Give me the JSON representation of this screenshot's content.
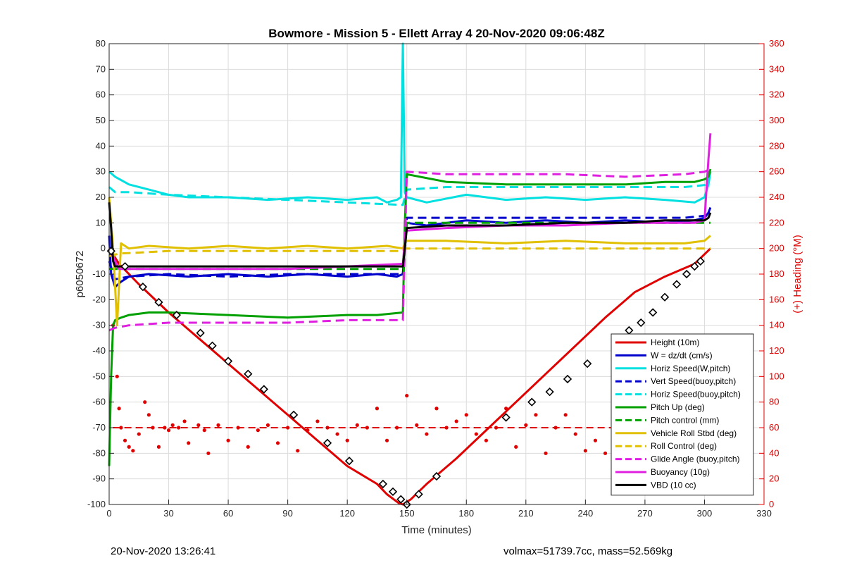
{
  "chart_data": {
    "type": "line",
    "title": "Bowmore - Mission 5 - Ellett Array 4 20-Nov-2020 09:06:48Z",
    "xlabel": "Time (minutes)",
    "ylabel": "p6050672",
    "y2label": "(+) Heading (°M)",
    "xlim": [
      0,
      330
    ],
    "ylim": [
      -100,
      80
    ],
    "y2lim": [
      0,
      360
    ],
    "xticks": [
      0,
      30,
      60,
      90,
      120,
      150,
      180,
      210,
      240,
      270,
      300,
      330
    ],
    "yticks": [
      -100,
      -90,
      -80,
      -70,
      -60,
      -50,
      -40,
      -30,
      -20,
      -10,
      0,
      10,
      20,
      30,
      40,
      50,
      60,
      70,
      80
    ],
    "y2ticks": [
      0,
      20,
      40,
      60,
      80,
      100,
      120,
      140,
      160,
      180,
      200,
      220,
      240,
      260,
      280,
      300,
      320,
      340,
      360
    ],
    "grid": true,
    "legend_position": "lower-right",
    "series": [
      {
        "name": "Height (10m)",
        "color": "#e00000",
        "style": "solid",
        "x": [
          0,
          5,
          15,
          30,
          45,
          60,
          75,
          90,
          105,
          120,
          135,
          140,
          146,
          148,
          152,
          160,
          175,
          190,
          205,
          220,
          235,
          250,
          265,
          280,
          295,
          303
        ],
        "y": [
          0,
          -6,
          -14,
          -25,
          -35,
          -45,
          -55,
          -65,
          -75,
          -85,
          -92,
          -96,
          -99.5,
          -100,
          -98,
          -92,
          -82,
          -71,
          -60,
          -49,
          -38,
          -27,
          -17,
          -11,
          -6,
          0
        ]
      },
      {
        "name": "W = dz/dt (cm/s)",
        "color": "#0000cc",
        "style": "solid",
        "x": [
          0,
          1,
          3,
          6,
          10,
          20,
          40,
          60,
          80,
          100,
          120,
          135,
          145,
          148,
          149,
          150,
          160,
          180,
          200,
          220,
          240,
          260,
          280,
          295,
          300,
          302,
          303
        ],
        "y": [
          5,
          -10,
          -15,
          -13,
          -11,
          -10,
          -11,
          -10,
          -11,
          -10,
          -11,
          -10,
          -11,
          -10,
          0,
          10,
          9,
          11,
          10,
          11,
          10,
          11,
          10,
          11,
          12,
          14,
          16
        ]
      },
      {
        "name": "Horiz Speed(W,pitch)",
        "color": "#00e0e0",
        "style": "solid",
        "x": [
          0,
          3,
          10,
          20,
          30,
          40,
          60,
          80,
          100,
          120,
          135,
          140,
          145,
          147,
          148,
          149,
          150,
          160,
          180,
          200,
          220,
          240,
          260,
          280,
          295,
          300,
          302,
          303
        ],
        "y": [
          30,
          28,
          25,
          23,
          21,
          20,
          20,
          19,
          20,
          19,
          20,
          18,
          19,
          20,
          80,
          22,
          20,
          18,
          21,
          19,
          20,
          19,
          20,
          19,
          18,
          20,
          25,
          30
        ]
      },
      {
        "name": "Vert Speed(buoy,pitch)",
        "color": "#0000cc",
        "style": "dashed",
        "x": [
          0,
          3,
          10,
          30,
          60,
          90,
          120,
          148,
          149,
          150,
          170,
          200,
          230,
          260,
          290,
          303
        ],
        "y": [
          -5,
          -12,
          -11,
          -10,
          -11,
          -10,
          -10,
          -10,
          0,
          12,
          12,
          12,
          12,
          12,
          12,
          13
        ]
      },
      {
        "name": "Horiz Speed(buoy,pitch)",
        "color": "#00e0e0",
        "style": "dashed",
        "x": [
          0,
          3,
          10,
          30,
          60,
          90,
          120,
          148,
          149,
          150,
          170,
          200,
          230,
          260,
          290,
          303
        ],
        "y": [
          24,
          22,
          22,
          21,
          20,
          19,
          18,
          17,
          20,
          23,
          24,
          24,
          24,
          24,
          24,
          25
        ]
      },
      {
        "name": "Pitch Up (deg)",
        "color": "#00a000",
        "style": "solid",
        "x": [
          0,
          1,
          2,
          3,
          6,
          10,
          20,
          30,
          60,
          90,
          120,
          135,
          148,
          149,
          150,
          170,
          200,
          230,
          260,
          280,
          295,
          300,
          302,
          303
        ],
        "y": [
          -85,
          -50,
          -30,
          -28,
          -27,
          -26,
          -25,
          -25,
          -26,
          -27,
          -26,
          -26,
          -25,
          10,
          29,
          26,
          25,
          25,
          25,
          26,
          26,
          27,
          28,
          31
        ]
      },
      {
        "name": "Pitch control (mm)",
        "color": "#00a000",
        "style": "dashed",
        "x": [
          0,
          5,
          30,
          60,
          90,
          120,
          148,
          149,
          150,
          180,
          210,
          240,
          270,
          300,
          303
        ],
        "y": [
          -8,
          -8,
          -8,
          -8,
          -8,
          -8,
          -8,
          0,
          10,
          10,
          10,
          10,
          10,
          10,
          10
        ]
      },
      {
        "name": "Vehicle Roll Stbd (deg)",
        "color": "#e0c000",
        "style": "solid",
        "x": [
          0,
          2,
          4,
          6,
          10,
          20,
          40,
          60,
          80,
          100,
          120,
          140,
          148,
          149,
          150,
          170,
          200,
          230,
          260,
          290,
          300,
          303
        ],
        "y": [
          20,
          0,
          -30,
          2,
          0,
          1,
          0,
          1,
          0,
          1,
          0,
          1,
          0,
          2,
          3,
          3,
          2,
          3,
          2,
          2,
          3,
          5
        ]
      },
      {
        "name": "Roll Control (deg)",
        "color": "#e0c000",
        "style": "dashed",
        "x": [
          0,
          5,
          30,
          60,
          90,
          120,
          148,
          149,
          150,
          180,
          210,
          240,
          270,
          300,
          303
        ],
        "y": [
          -3,
          -2,
          -1,
          -1,
          -1,
          -1,
          -1,
          0,
          0,
          0,
          0,
          0,
          0,
          0,
          0
        ]
      },
      {
        "name": "Glide Angle (buoy,pitch)",
        "color": "#e020e0",
        "style": "dashed",
        "x": [
          0,
          3,
          10,
          30,
          60,
          90,
          120,
          148,
          149,
          150,
          170,
          200,
          230,
          260,
          290,
          300,
          303
        ],
        "y": [
          -32,
          -31,
          -30,
          -29,
          -29,
          -29,
          -28,
          -28,
          0,
          30,
          29,
          29,
          29,
          28,
          29,
          30,
          31
        ]
      },
      {
        "name": "Buoyancy (10g)",
        "color": "#e020e0",
        "style": "solid",
        "x": [
          0,
          3,
          5,
          30,
          60,
          90,
          120,
          148,
          149,
          150,
          170,
          200,
          230,
          260,
          280,
          295,
          300,
          302,
          303
        ],
        "y": [
          0,
          -5,
          -8,
          -8,
          -8,
          -8,
          -7,
          -6,
          3,
          7,
          8,
          9,
          9,
          10,
          10,
          10,
          11,
          35,
          45
        ]
      },
      {
        "name": "VBD (10 cc)",
        "color": "#000000",
        "style": "solid",
        "x": [
          0,
          1,
          2,
          3,
          5,
          30,
          60,
          90,
          120,
          148,
          149,
          150,
          170,
          200,
          230,
          240,
          260,
          280,
          300,
          302,
          303
        ],
        "y": [
          18,
          8,
          -5,
          -7,
          -7,
          -7,
          -7,
          -7,
          -7,
          -7,
          0,
          8,
          9,
          9,
          10,
          10,
          10,
          11,
          11,
          12,
          14
        ]
      }
    ],
    "height_markers": {
      "x": [
        1,
        8,
        17,
        25,
        34,
        46,
        52,
        60,
        70,
        78,
        93,
        110,
        121,
        138,
        143,
        147,
        150,
        156,
        165,
        200,
        213,
        222,
        231,
        241,
        256,
        262,
        268,
        274,
        280,
        286,
        291,
        295,
        298
      ],
      "y": [
        -1,
        -7,
        -15,
        -21,
        -26,
        -33,
        -38,
        -44,
        -49,
        -55,
        -65,
        -76,
        -83,
        -92,
        -95,
        -98,
        -100,
        -96,
        -89,
        -66,
        -60,
        -56,
        -51,
        -45,
        -35,
        -32,
        -29,
        -25,
        -19,
        -14,
        -10,
        -7,
        -5
      ]
    },
    "heading_points": {
      "x": [
        2,
        4,
        5,
        6,
        8,
        10,
        12,
        15,
        18,
        20,
        22,
        25,
        28,
        30,
        32,
        35,
        38,
        40,
        45,
        48,
        50,
        55,
        60,
        65,
        70,
        75,
        80,
        85,
        90,
        95,
        100,
        105,
        110,
        115,
        120,
        125,
        130,
        135,
        140,
        145,
        150,
        155,
        160,
        165,
        170,
        175,
        180,
        185,
        190,
        195,
        200,
        205,
        210,
        215,
        220,
        225,
        230,
        235,
        240,
        245,
        250,
        255,
        260,
        265,
        270,
        275,
        280,
        285,
        290,
        295,
        300,
        303
      ],
      "y": [
        140,
        100,
        75,
        60,
        50,
        45,
        42,
        55,
        80,
        70,
        60,
        45,
        60,
        58,
        62,
        60,
        65,
        48,
        62,
        58,
        40,
        62,
        50,
        60,
        45,
        58,
        62,
        48,
        60,
        42,
        58,
        65,
        60,
        55,
        50,
        62,
        60,
        75,
        50,
        60,
        85,
        62,
        55,
        75,
        60,
        65,
        70,
        55,
        50,
        60,
        75,
        45,
        62,
        70,
        40,
        60,
        70,
        55,
        42,
        50,
        40,
        55,
        60,
        70,
        45,
        65,
        60,
        80,
        55,
        62,
        70,
        60
      ]
    },
    "heading_reference_value": 60,
    "footer_left": "20-Nov-2020 13:26:41",
    "footer_right": "volmax=51739.7cc, mass=52.569kg"
  }
}
